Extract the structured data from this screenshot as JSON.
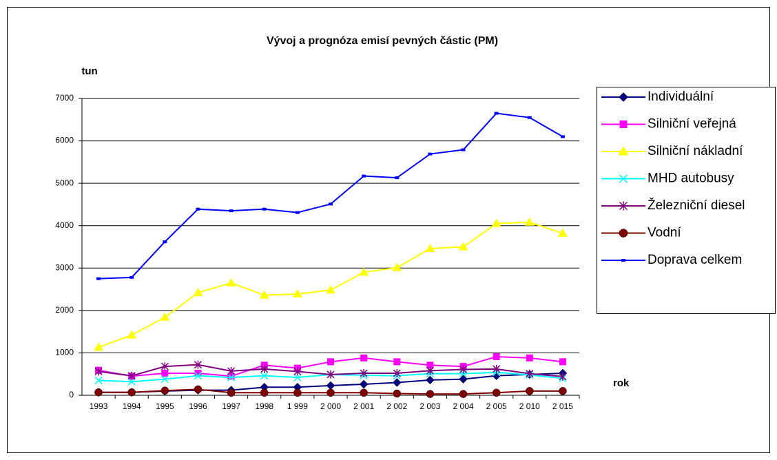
{
  "chart_data": {
    "type": "line",
    "title": "Vývoj a prognóza emisí pevných částic (PM)",
    "y_label": "tun",
    "x_label": "rok",
    "categories": [
      "1993",
      "1994",
      "1995",
      "1996",
      "1997",
      "1998",
      "1 999",
      "2 000",
      "2 001",
      "2 002",
      "2 003",
      "2 004",
      "2 005",
      "2 010",
      "2 015"
    ],
    "ylim": [
      0,
      7000
    ],
    "yticks": [
      0,
      1000,
      2000,
      3000,
      4000,
      5000,
      6000,
      7000
    ],
    "grid": true,
    "legend": "right",
    "series": [
      {
        "name": "Individuální",
        "color": "#000080",
        "marker": "diamond",
        "values": [
          70,
          70,
          100,
          120,
          120,
          190,
          190,
          230,
          260,
          300,
          360,
          380,
          460,
          490,
          520
        ]
      },
      {
        "name": "Silniční veřejná",
        "color": "#ff00ff",
        "marker": "square",
        "values": [
          590,
          450,
          520,
          520,
          450,
          710,
          640,
          790,
          880,
          790,
          710,
          680,
          910,
          880,
          790
        ]
      },
      {
        "name": "Silniční nákladní",
        "color": "#ffff00",
        "marker": "triangle",
        "values": [
          1130,
          1420,
          1840,
          2420,
          2650,
          2360,
          2390,
          2480,
          2900,
          3010,
          3460,
          3500,
          4050,
          4080,
          3820
        ]
      },
      {
        "name": "MHD autobusy",
        "color": "#00ffff",
        "marker": "x",
        "values": [
          350,
          320,
          380,
          460,
          420,
          460,
          420,
          490,
          470,
          460,
          510,
          510,
          540,
          480,
          400
        ]
      },
      {
        "name": "Železniční diesel",
        "color": "#800080",
        "marker": "star",
        "values": [
          560,
          460,
          680,
          720,
          570,
          620,
          560,
          490,
          520,
          520,
          580,
          610,
          620,
          510,
          440
        ]
      },
      {
        "name": "Vodní",
        "color": "#800000",
        "marker": "circle",
        "values": [
          70,
          70,
          110,
          140,
          60,
          60,
          60,
          60,
          60,
          40,
          30,
          30,
          60,
          100,
          100
        ]
      },
      {
        "name": "Doprava celkem",
        "color": "#0000ff",
        "marker": "dash",
        "values": [
          2750,
          2780,
          3620,
          4390,
          4350,
          4390,
          4310,
          4510,
          5170,
          5130,
          5690,
          5790,
          6650,
          6550,
          6100
        ]
      }
    ]
  }
}
